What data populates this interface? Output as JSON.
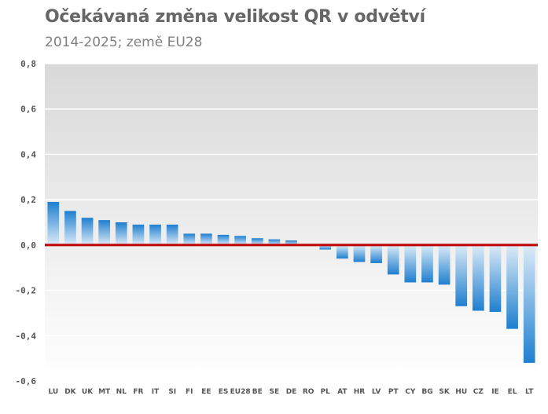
{
  "chart_data": {
    "type": "bar",
    "title": "Očekávaná změna velikost QR v odvětví",
    "subtitle": "2014-2025; země EU28",
    "xlabel": "",
    "ylabel": "",
    "ylim": [
      -0.6,
      0.8
    ],
    "yticks": [
      0.8,
      0.6,
      0.4,
      0.2,
      0.0,
      -0.2,
      -0.4,
      -0.6
    ],
    "ytick_labels": [
      "0,8",
      "0,6",
      "0,4",
      "0,2",
      "0,0",
      "-0,2",
      "-0,4",
      "-0,6"
    ],
    "grid": true,
    "legend": "none",
    "categories": [
      "LU",
      "DK",
      "UK",
      "MT",
      "NL",
      "FR",
      "IT",
      "SI",
      "FI",
      "EE",
      "ES",
      "EU28",
      "BE",
      "SE",
      "DE",
      "RO",
      "PL",
      "AT",
      "HR",
      "LV",
      "PT",
      "CY",
      "BG",
      "SK",
      "HU",
      "CZ",
      "IE",
      "EL",
      "LT"
    ],
    "values": [
      0.19,
      0.15,
      0.12,
      0.11,
      0.1,
      0.09,
      0.09,
      0.09,
      0.05,
      0.05,
      0.045,
      0.04,
      0.03,
      0.025,
      0.02,
      0.0,
      -0.02,
      -0.06,
      -0.075,
      -0.08,
      -0.13,
      -0.165,
      -0.165,
      -0.175,
      -0.27,
      -0.29,
      -0.295,
      -0.37,
      -0.52
    ],
    "colors": {
      "bar_top": "#1f7fd0",
      "bar_bottom": "#dcebf7",
      "zero_line": "#c00000",
      "plot_bg_top": "#d9d9d9",
      "plot_bg_bottom": "#ffffff",
      "grid": "#ffffff"
    }
  }
}
